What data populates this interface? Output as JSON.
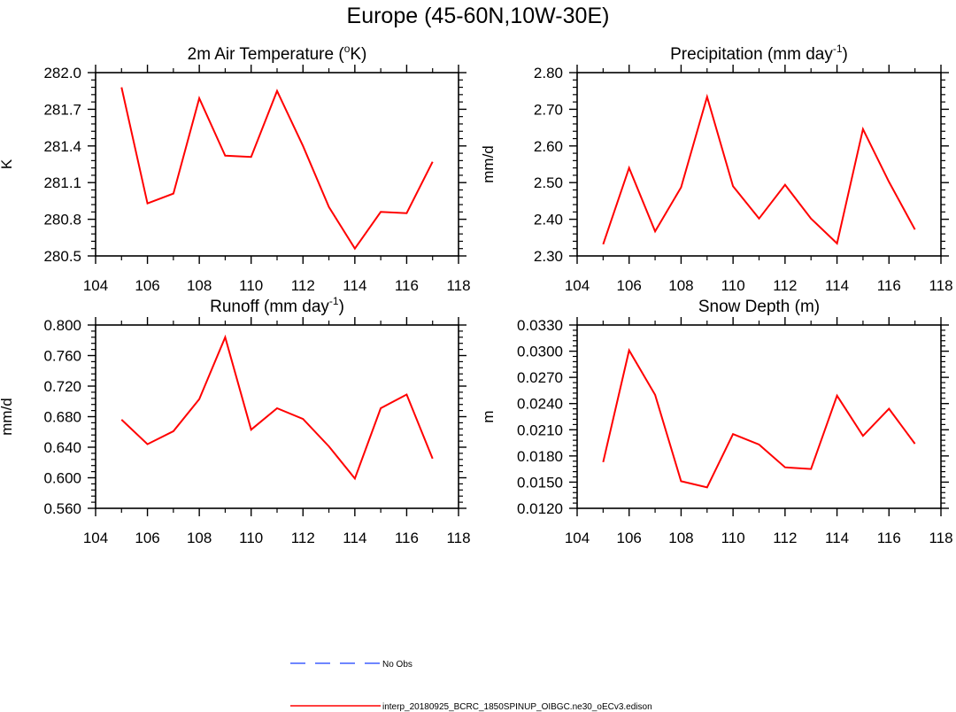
{
  "suptitle": "Europe (45-60N,10W-30E)",
  "chart_data": [
    {
      "type": "line",
      "title": "2m Air Temperature (",
      "title_sup": "o",
      "title_tail": "K)",
      "ylabel": "K",
      "xlim": [
        104,
        118
      ],
      "xticks": [
        "104",
        "106",
        "108",
        "110",
        "112",
        "114",
        "116",
        "118"
      ],
      "ylim": [
        280.5,
        282.0
      ],
      "yticks": [
        "280.5",
        "280.8",
        "281.1",
        "281.4",
        "281.7",
        "282.0"
      ],
      "x": [
        105,
        106,
        107,
        108,
        109,
        110,
        111,
        112,
        113,
        114,
        115,
        116,
        117
      ],
      "series": [
        {
          "name": "interp_20180925_BCRC_1850SPINUP_OIBGC.ne30_oECv3.edison",
          "values": [
            281.88,
            280.93,
            281.01,
            281.79,
            281.32,
            281.31,
            281.85,
            281.4,
            280.9,
            280.56,
            280.86,
            280.85,
            281.27
          ]
        }
      ]
    },
    {
      "type": "line",
      "title": "Precipitation (mm day",
      "title_sup": "-1",
      "title_tail": ")",
      "ylabel": "mm/d",
      "xlim": [
        104,
        118
      ],
      "xticks": [
        "104",
        "106",
        "108",
        "110",
        "112",
        "114",
        "116",
        "118"
      ],
      "ylim": [
        2.3,
        2.8
      ],
      "yticks": [
        "2.30",
        "2.40",
        "2.50",
        "2.60",
        "2.70",
        "2.80"
      ],
      "x": [
        105,
        106,
        107,
        108,
        109,
        110,
        111,
        112,
        113,
        114,
        115,
        116,
        117
      ],
      "series": [
        {
          "name": "interp_20180925_BCRC_1850SPINUP_OIBGC.ne30_oECv3.edison",
          "values": [
            2.332,
            2.54,
            2.367,
            2.487,
            2.734,
            2.49,
            2.402,
            2.494,
            2.402,
            2.334,
            2.646,
            2.502,
            2.372
          ]
        }
      ]
    },
    {
      "type": "line",
      "title": "Runoff (mm day",
      "title_sup": "-1",
      "title_tail": ")",
      "ylabel": "mm/d",
      "xlim": [
        104,
        118
      ],
      "xticks": [
        "104",
        "106",
        "108",
        "110",
        "112",
        "114",
        "116",
        "118"
      ],
      "ylim": [
        0.56,
        0.8
      ],
      "yticks": [
        "0.560",
        "0.600",
        "0.640",
        "0.680",
        "0.720",
        "0.760",
        "0.800"
      ],
      "x": [
        105,
        106,
        107,
        108,
        109,
        110,
        111,
        112,
        113,
        114,
        115,
        116,
        117
      ],
      "series": [
        {
          "name": "interp_20180925_BCRC_1850SPINUP_OIBGC.ne30_oECv3.edison",
          "values": [
            0.676,
            0.644,
            0.661,
            0.703,
            0.784,
            0.663,
            0.691,
            0.677,
            0.641,
            0.599,
            0.691,
            0.709,
            0.625
          ]
        }
      ]
    },
    {
      "type": "line",
      "title": "Snow Depth (m)",
      "title_sup": "",
      "title_tail": "",
      "ylabel": "m",
      "xlim": [
        104,
        118
      ],
      "xticks": [
        "104",
        "106",
        "108",
        "110",
        "112",
        "114",
        "116",
        "118"
      ],
      "ylim": [
        0.012,
        0.033
      ],
      "yticks": [
        "0.0120",
        "0.0150",
        "0.0180",
        "0.0210",
        "0.0240",
        "0.0270",
        "0.0300",
        "0.0330"
      ],
      "x": [
        105,
        106,
        107,
        108,
        109,
        110,
        111,
        112,
        113,
        114,
        115,
        116,
        117
      ],
      "series": [
        {
          "name": "interp_20180925_BCRC_1850SPINUP_OIBGC.ne30_oECv3.edison",
          "values": [
            0.0173,
            0.0301,
            0.025,
            0.0151,
            0.0144,
            0.0205,
            0.0193,
            0.0167,
            0.0165,
            0.0249,
            0.0203,
            0.0234,
            0.0194
          ]
        }
      ]
    }
  ],
  "legend": [
    {
      "label": "No Obs",
      "color": "#3f5fff",
      "dash": "dashed"
    },
    {
      "label": "interp_20180925_BCRC_1850SPINUP_OIBGC.ne30_oECv3.edison",
      "color": "#ff0000",
      "dash": "solid"
    }
  ],
  "colors": {
    "model_line": "#ff0000",
    "obs_line": "#3f5fff",
    "axes": "#000000"
  }
}
